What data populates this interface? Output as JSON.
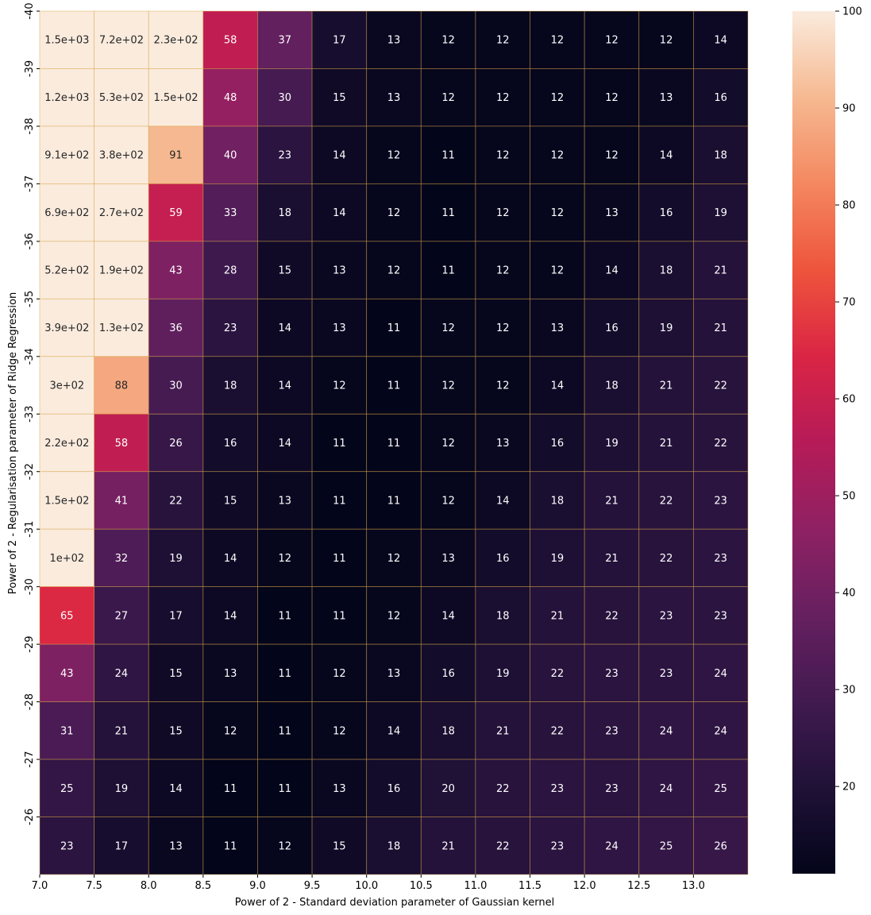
{
  "chart_data": {
    "type": "heatmap",
    "xlabel": "Power of 2 - Standard deviation parameter of Gaussian kernel",
    "ylabel": "Power of 2 - Regularisation parameter of Ridge Regression",
    "x_tick_labels": [
      "7.0",
      "7.5",
      "8.0",
      "8.5",
      "9.0",
      "9.5",
      "10.0",
      "10.5",
      "11.0",
      "11.5",
      "12.0",
      "12.5",
      "13.0"
    ],
    "y_tick_labels": [
      "-40",
      "-39",
      "-38",
      "-37",
      "-36",
      "-35",
      "-34",
      "-33",
      "-32",
      "-31",
      "-30",
      "-29",
      "-28",
      "-27",
      "-26"
    ],
    "color_range": [
      11,
      100
    ],
    "colorbar_ticks": [
      20,
      30,
      40,
      50,
      60,
      70,
      80,
      90,
      100
    ],
    "colormap": "rocket",
    "grid_color": "#d9a441",
    "values": [
      [
        1500,
        720,
        230,
        58,
        37,
        17,
        13,
        12,
        12,
        12,
        12,
        12,
        14
      ],
      [
        1200,
        530,
        150,
        48,
        30,
        15,
        13,
        12,
        12,
        12,
        12,
        13,
        16
      ],
      [
        910,
        380,
        91,
        40,
        23,
        14,
        12,
        11,
        12,
        12,
        12,
        14,
        18
      ],
      [
        690,
        270,
        59,
        33,
        18,
        14,
        12,
        11,
        12,
        12,
        13,
        16,
        19
      ],
      [
        520,
        190,
        43,
        28,
        15,
        13,
        12,
        11,
        12,
        12,
        14,
        18,
        21
      ],
      [
        390,
        130,
        36,
        23,
        14,
        13,
        11,
        12,
        12,
        13,
        16,
        19,
        21
      ],
      [
        300,
        88,
        30,
        18,
        14,
        12,
        11,
        12,
        12,
        14,
        18,
        21,
        22
      ],
      [
        220,
        58,
        26,
        16,
        14,
        11,
        11,
        12,
        13,
        16,
        19,
        21,
        22
      ],
      [
        150,
        41,
        22,
        15,
        13,
        11,
        11,
        12,
        14,
        18,
        21,
        22,
        23
      ],
      [
        100,
        32,
        19,
        14,
        12,
        11,
        12,
        13,
        16,
        19,
        21,
        22,
        23
      ],
      [
        65,
        27,
        17,
        14,
        11,
        11,
        12,
        14,
        18,
        21,
        22,
        23,
        23
      ],
      [
        43,
        24,
        15,
        13,
        11,
        12,
        13,
        16,
        19,
        22,
        23,
        23,
        24
      ],
      [
        31,
        21,
        15,
        12,
        11,
        12,
        14,
        18,
        21,
        22,
        23,
        24,
        24
      ],
      [
        25,
        19,
        14,
        11,
        11,
        13,
        16,
        20,
        22,
        23,
        23,
        24,
        25
      ],
      [
        23,
        17,
        13,
        11,
        12,
        15,
        18,
        21,
        22,
        23,
        24,
        25,
        26
      ]
    ],
    "annotations": [
      [
        "1.5e+03",
        "7.2e+02",
        "2.3e+02",
        "58",
        "37",
        "17",
        "13",
        "12",
        "12",
        "12",
        "12",
        "12",
        "14"
      ],
      [
        "1.2e+03",
        "5.3e+02",
        "1.5e+02",
        "48",
        "30",
        "15",
        "13",
        "12",
        "12",
        "12",
        "12",
        "13",
        "16"
      ],
      [
        "9.1e+02",
        "3.8e+02",
        "91",
        "40",
        "23",
        "14",
        "12",
        "11",
        "12",
        "12",
        "12",
        "14",
        "18"
      ],
      [
        "6.9e+02",
        "2.7e+02",
        "59",
        "33",
        "18",
        "14",
        "12",
        "11",
        "12",
        "12",
        "13",
        "16",
        "19"
      ],
      [
        "5.2e+02",
        "1.9e+02",
        "43",
        "28",
        "15",
        "13",
        "12",
        "11",
        "12",
        "12",
        "14",
        "18",
        "21"
      ],
      [
        "3.9e+02",
        "1.3e+02",
        "36",
        "23",
        "14",
        "13",
        "11",
        "12",
        "12",
        "13",
        "16",
        "19",
        "21"
      ],
      [
        "3e+02",
        "88",
        "30",
        "18",
        "14",
        "12",
        "11",
        "12",
        "12",
        "14",
        "18",
        "21",
        "22"
      ],
      [
        "2.2e+02",
        "58",
        "26",
        "16",
        "14",
        "11",
        "11",
        "12",
        "13",
        "16",
        "19",
        "21",
        "22"
      ],
      [
        "1.5e+02",
        "41",
        "22",
        "15",
        "13",
        "11",
        "11",
        "12",
        "14",
        "18",
        "21",
        "22",
        "23"
      ],
      [
        "1e+02",
        "32",
        "19",
        "14",
        "12",
        "11",
        "12",
        "13",
        "16",
        "19",
        "21",
        "22",
        "23"
      ],
      [
        "65",
        "27",
        "17",
        "14",
        "11",
        "11",
        "12",
        "14",
        "18",
        "21",
        "22",
        "23",
        "23"
      ],
      [
        "43",
        "24",
        "15",
        "13",
        "11",
        "12",
        "13",
        "16",
        "19",
        "22",
        "23",
        "23",
        "24"
      ],
      [
        "31",
        "21",
        "15",
        "12",
        "11",
        "12",
        "14",
        "18",
        "21",
        "22",
        "23",
        "24",
        "24"
      ],
      [
        "25",
        "19",
        "14",
        "11",
        "11",
        "13",
        "16",
        "20",
        "22",
        "23",
        "23",
        "24",
        "25"
      ],
      [
        "23",
        "17",
        "13",
        "11",
        "12",
        "15",
        "18",
        "21",
        "22",
        "23",
        "24",
        "25",
        "26"
      ]
    ]
  }
}
